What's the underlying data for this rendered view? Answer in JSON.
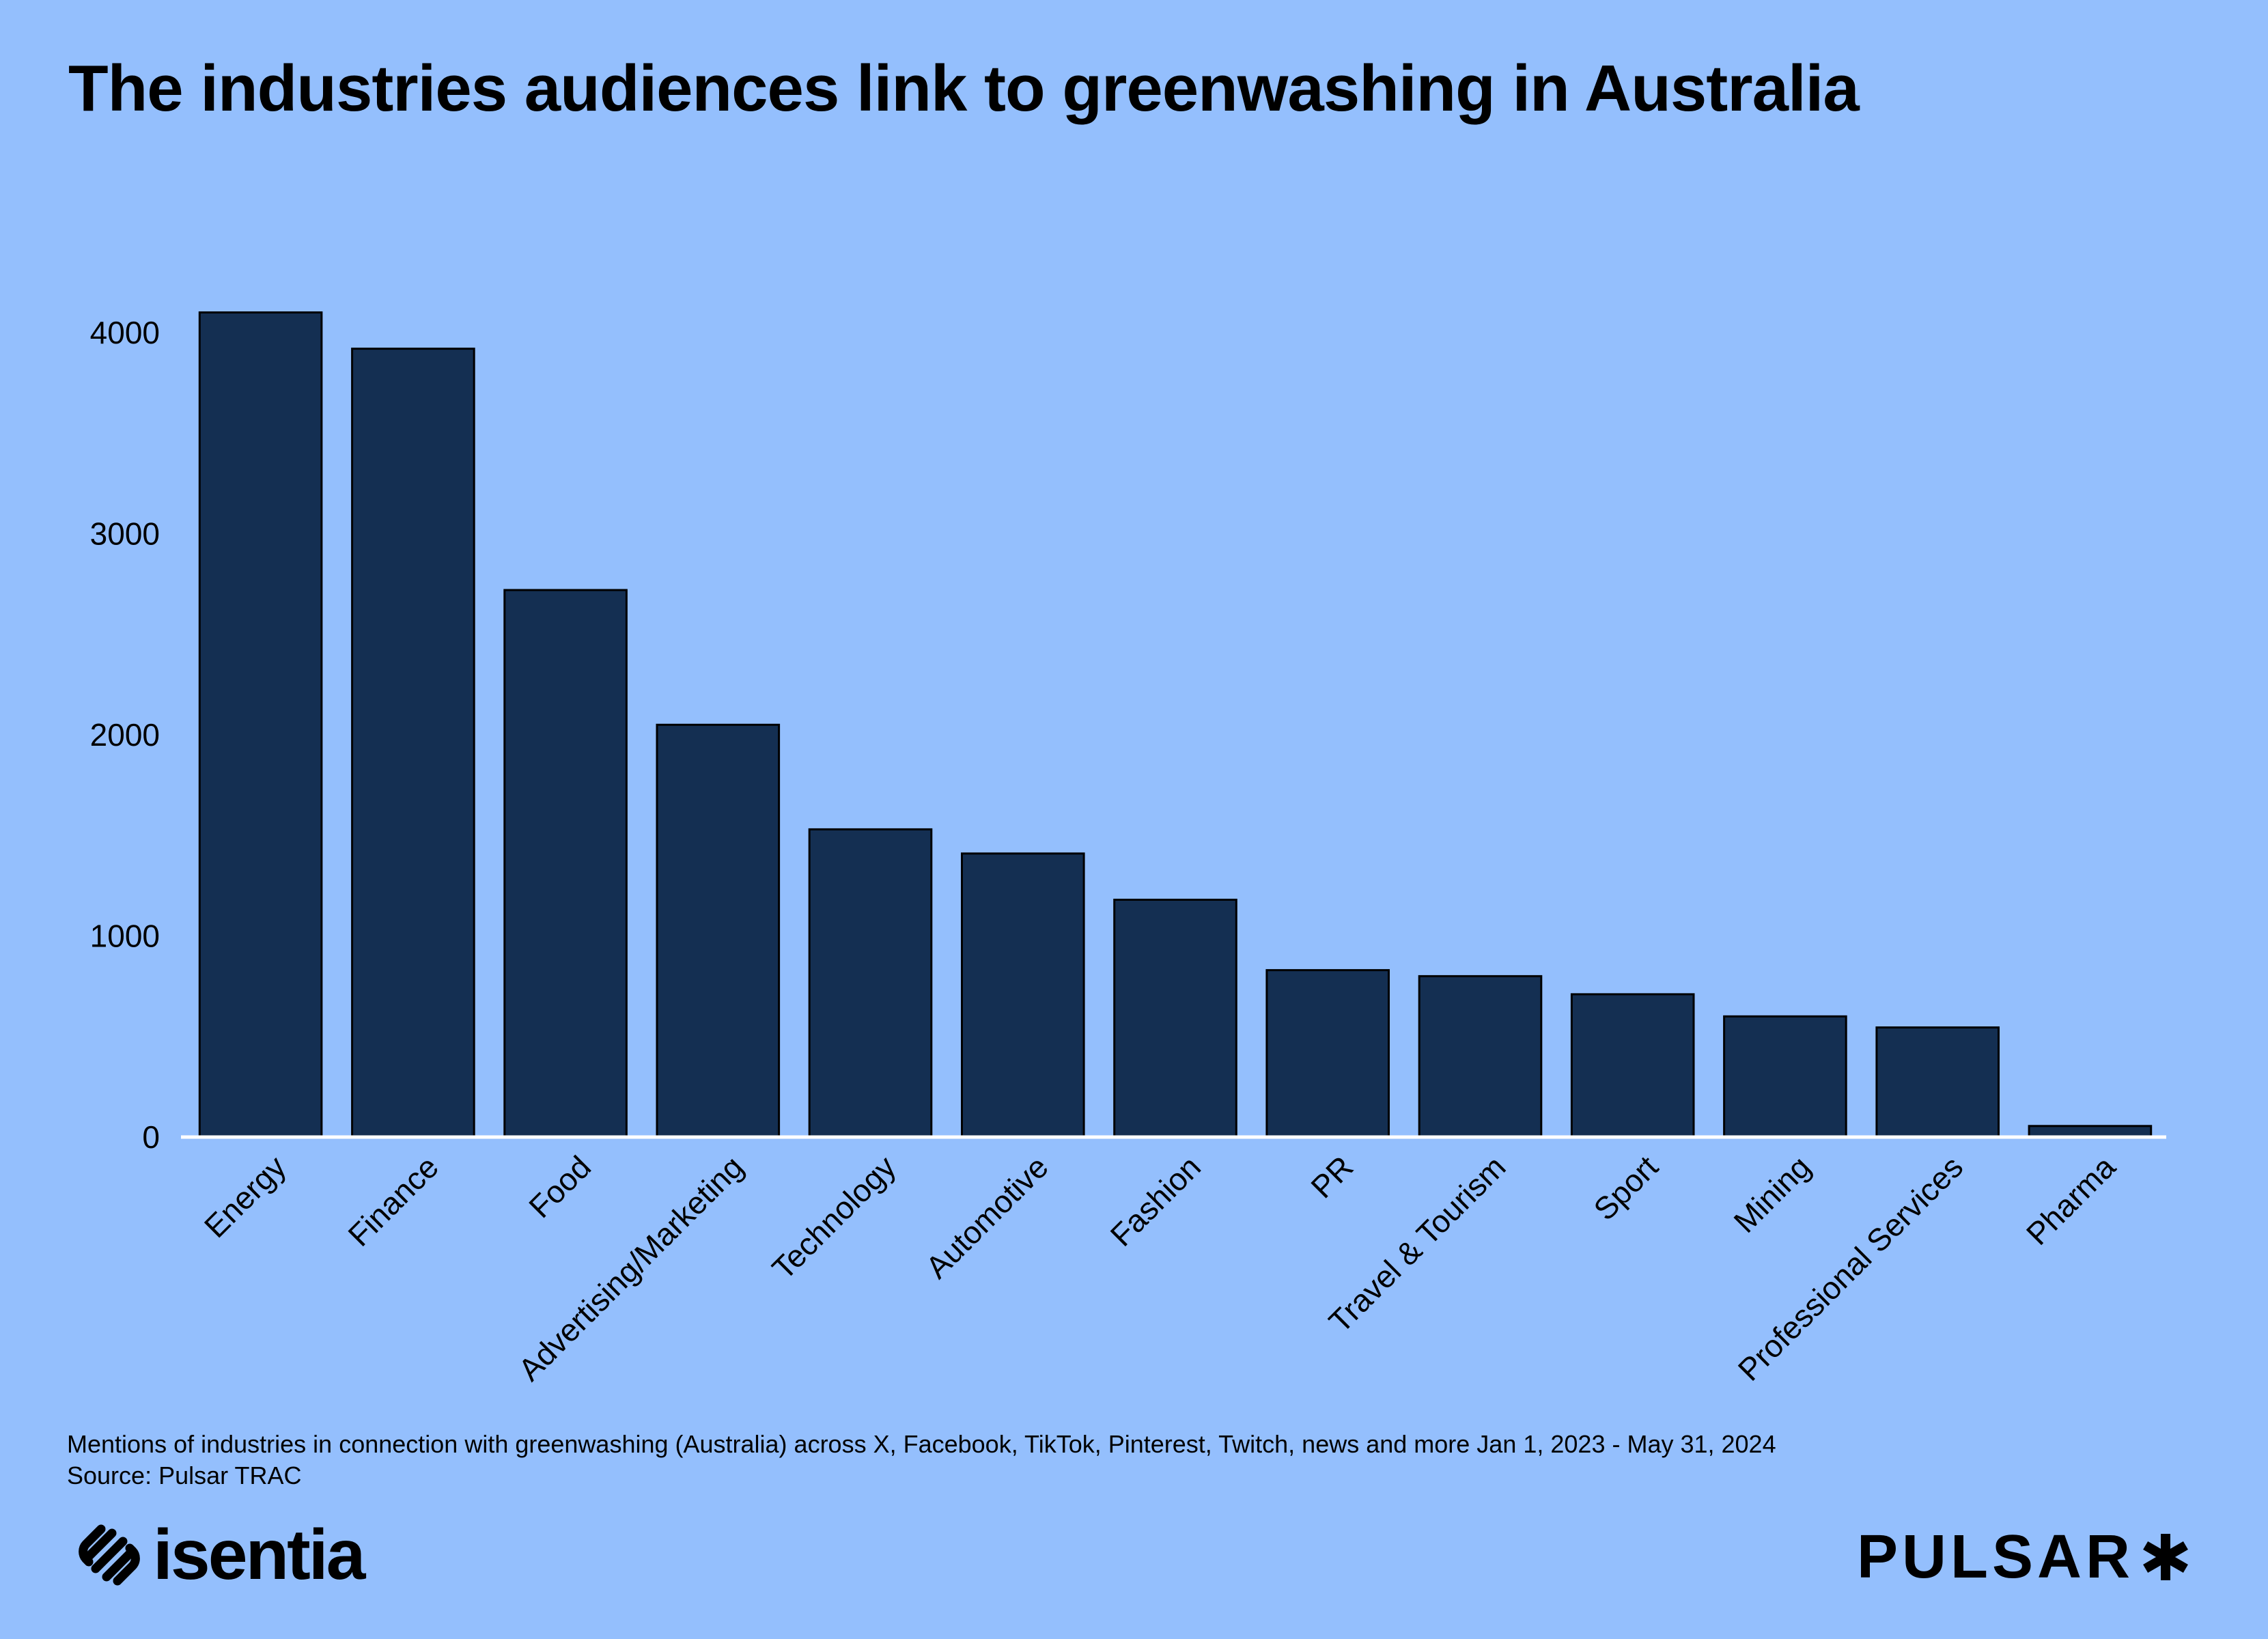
{
  "title": "The industries audiences link to greenwashing in Australia",
  "footnote": {
    "line1": "Mentions of industries in connection with greenwashing (Australia) across X, Facebook, TikTok, Pinterest, Twitch, news and more Jan 1, 2023 - May 31, 2024",
    "line2": "Source: Pulsar TRAC"
  },
  "logos": {
    "left": "isentia",
    "right": "PULSAR",
    "left_icon": "isentia-link-icon",
    "right_icon": "asterisk-icon"
  },
  "colors": {
    "background": "#94bffd",
    "bar": "#142f52",
    "baseline": "#ffffff",
    "text": "#000000"
  },
  "chart_data": {
    "type": "bar",
    "title": "The industries audiences link to greenwashing in Australia",
    "xlabel": "",
    "ylabel": "",
    "categories": [
      "Energy",
      "Finance",
      "Food",
      "Advertising/Marketing",
      "Technology",
      "Automotive",
      "Fashion",
      "PR",
      "Travel & Tourism",
      "Sport",
      "Mining",
      "Professional Services",
      "Pharma"
    ],
    "values": [
      4100,
      3920,
      2720,
      2050,
      1530,
      1410,
      1180,
      830,
      800,
      710,
      600,
      545,
      55
    ],
    "ylim": [
      0,
      4200
    ],
    "yticks": [
      0,
      1000,
      2000,
      3000,
      4000
    ],
    "ytick_labels": [
      "0",
      "1000",
      "2000",
      "3000",
      "4000"
    ],
    "grid": false,
    "legend": "none"
  }
}
